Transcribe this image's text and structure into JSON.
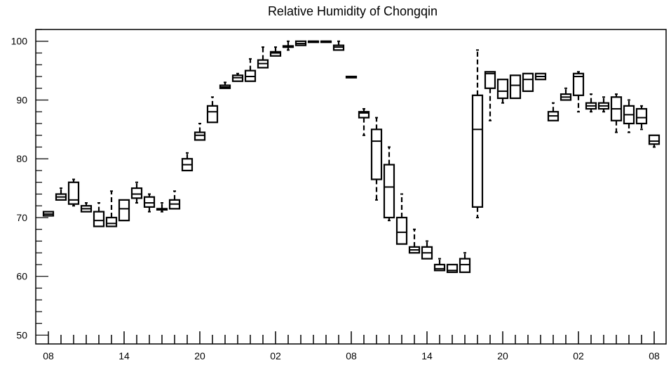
{
  "chart_data": {
    "type": "box",
    "title": "Relative Humidity of Chongqin",
    "xlabel": "",
    "ylabel": "",
    "ylim": [
      48.5,
      102
    ],
    "y_major_ticks": [
      50,
      60,
      70,
      80,
      90,
      100
    ],
    "y_minor_step": 2,
    "x_tick_labels": [
      "08",
      "14",
      "20",
      "02",
      "08",
      "14",
      "20",
      "02",
      "08"
    ],
    "x_hours_range": [
      0,
      48
    ],
    "grid": false,
    "boxes": [
      {
        "hour": 0,
        "whisker_low": 70.3,
        "q1": 70.3,
        "median": 70.6,
        "q3": 71.0,
        "whisker_high": 71.0
      },
      {
        "hour": 1,
        "whisker_low": 73.0,
        "q1": 73.0,
        "median": 73.5,
        "q3": 74.0,
        "whisker_high": 75.0
      },
      {
        "hour": 2,
        "whisker_low": 72.0,
        "q1": 72.3,
        "median": 73.0,
        "q3": 76.0,
        "whisker_high": 76.5
      },
      {
        "hour": 3,
        "whisker_low": 71.0,
        "q1": 71.0,
        "median": 71.5,
        "q3": 72.0,
        "whisker_high": 72.5
      },
      {
        "hour": 4,
        "whisker_low": 68.5,
        "q1": 68.5,
        "median": 69.5,
        "q3": 71.0,
        "whisker_high": 72.5
      },
      {
        "hour": 5,
        "whisker_low": 68.5,
        "q1": 68.5,
        "median": 69.0,
        "q3": 70.0,
        "whisker_high": 74.5
      },
      {
        "hour": 6,
        "whisker_low": 69.5,
        "q1": 69.5,
        "median": 71.5,
        "q3": 73.0,
        "whisker_high": 73.0
      },
      {
        "hour": 7,
        "whisker_low": 72.5,
        "q1": 73.3,
        "median": 74.0,
        "q3": 75.0,
        "whisker_high": 76.0
      },
      {
        "hour": 8,
        "whisker_low": 71.0,
        "q1": 71.8,
        "median": 72.5,
        "q3": 73.5,
        "whisker_high": 74.0
      },
      {
        "hour": 9,
        "whisker_low": 71.0,
        "q1": 71.5,
        "median": 71.5,
        "q3": 71.5,
        "whisker_high": 72.5
      },
      {
        "hour": 10,
        "whisker_low": 71.5,
        "q1": 71.5,
        "median": 72.3,
        "q3": 73.0,
        "whisker_high": 74.5
      },
      {
        "hour": 11,
        "whisker_low": 78.0,
        "q1": 78.0,
        "median": 79.0,
        "q3": 80.0,
        "whisker_high": 81.0
      },
      {
        "hour": 12,
        "whisker_low": 83.2,
        "q1": 83.2,
        "median": 84.0,
        "q3": 84.5,
        "whisker_high": 86.0
      },
      {
        "hour": 13,
        "whisker_low": 86.2,
        "q1": 86.2,
        "median": 88.0,
        "q3": 89.0,
        "whisker_high": 90.5
      },
      {
        "hour": 14,
        "whisker_low": 92.0,
        "q1": 92.0,
        "median": 92.2,
        "q3": 92.5,
        "whisker_high": 93.0
      },
      {
        "hour": 15,
        "whisker_low": 93.2,
        "q1": 93.2,
        "median": 93.8,
        "q3": 94.2,
        "whisker_high": 94.5
      },
      {
        "hour": 16,
        "whisker_low": 93.2,
        "q1": 93.2,
        "median": 94.0,
        "q3": 95.0,
        "whisker_high": 97.0
      },
      {
        "hour": 17,
        "whisker_low": 95.5,
        "q1": 95.5,
        "median": 96.2,
        "q3": 96.8,
        "whisker_high": 99.0
      },
      {
        "hour": 18,
        "whisker_low": 97.5,
        "q1": 97.5,
        "median": 98.0,
        "q3": 98.2,
        "whisker_high": 99.0
      },
      {
        "hour": 19,
        "whisker_low": 98.5,
        "q1": 99.0,
        "median": 99.0,
        "q3": 99.2,
        "whisker_high": 100.0
      },
      {
        "hour": 20,
        "whisker_low": 99.3,
        "q1": 99.3,
        "median": 99.6,
        "q3": 100.0,
        "whisker_high": 100.0
      },
      {
        "hour": 21,
        "whisker_low": 100.0,
        "q1": 100.0,
        "median": 100.0,
        "q3": 100.0,
        "whisker_high": 100.0
      },
      {
        "hour": 22,
        "whisker_low": 100.0,
        "q1": 100.0,
        "median": 100.0,
        "q3": 100.0,
        "whisker_high": 100.0
      },
      {
        "hour": 23,
        "whisker_low": 98.5,
        "q1": 98.5,
        "median": 99.0,
        "q3": 99.3,
        "whisker_high": 100.0
      },
      {
        "hour": 24,
        "whisker_low": 93.8,
        "q1": 93.8,
        "median": 94.0,
        "q3": 94.0,
        "whisker_high": 94.0
      },
      {
        "hour": 25,
        "whisker_low": 84.0,
        "q1": 87.0,
        "median": 87.8,
        "q3": 88.0,
        "whisker_high": 88.5
      },
      {
        "hour": 26,
        "whisker_low": 73.0,
        "q1": 76.5,
        "median": 83.0,
        "q3": 85.0,
        "whisker_high": 87.0
      },
      {
        "hour": 27,
        "whisker_low": 69.5,
        "q1": 70.0,
        "median": 75.2,
        "q3": 79.0,
        "whisker_high": 82.0
      },
      {
        "hour": 28,
        "whisker_low": 65.5,
        "q1": 65.5,
        "median": 67.5,
        "q3": 70.0,
        "whisker_high": 74.0
      },
      {
        "hour": 29,
        "whisker_low": 64.0,
        "q1": 64.0,
        "median": 64.5,
        "q3": 65.0,
        "whisker_high": 68.0
      },
      {
        "hour": 30,
        "whisker_low": 63.0,
        "q1": 63.0,
        "median": 64.0,
        "q3": 65.0,
        "whisker_high": 66.0
      },
      {
        "hour": 31,
        "whisker_low": 61.0,
        "q1": 61.0,
        "median": 61.3,
        "q3": 62.0,
        "whisker_high": 63.0
      },
      {
        "hour": 32,
        "whisker_low": 60.7,
        "q1": 60.7,
        "median": 61.0,
        "q3": 62.0,
        "whisker_high": 62.0
      },
      {
        "hour": 33,
        "whisker_low": 60.7,
        "q1": 60.7,
        "median": 62.0,
        "q3": 63.0,
        "whisker_high": 64.0
      },
      {
        "hour": 34,
        "whisker_low": 70.0,
        "q1": 71.8,
        "median": 85.0,
        "q3": 90.8,
        "whisker_high": 98.5
      },
      {
        "hour": 35,
        "whisker_low": 86.5,
        "q1": 92.0,
        "median": 94.5,
        "q3": 94.8,
        "whisker_high": 94.8
      },
      {
        "hour": 36,
        "whisker_low": 89.5,
        "q1": 90.3,
        "median": 91.5,
        "q3": 93.5,
        "whisker_high": 93.5
      },
      {
        "hour": 37,
        "whisker_low": 90.3,
        "q1": 90.3,
        "median": 92.5,
        "q3": 94.2,
        "whisker_high": 94.2
      },
      {
        "hour": 38,
        "whisker_low": 91.5,
        "q1": 91.5,
        "median": 93.5,
        "q3": 94.5,
        "whisker_high": 94.5
      },
      {
        "hour": 39,
        "whisker_low": 93.5,
        "q1": 93.5,
        "median": 94.0,
        "q3": 94.5,
        "whisker_high": 94.5
      },
      {
        "hour": 40,
        "whisker_low": 86.5,
        "q1": 86.5,
        "median": 87.3,
        "q3": 88.0,
        "whisker_high": 89.5
      },
      {
        "hour": 41,
        "whisker_low": 90.0,
        "q1": 90.0,
        "median": 90.5,
        "q3": 91.0,
        "whisker_high": 92.0
      },
      {
        "hour": 42,
        "whisker_low": 88.0,
        "q1": 90.8,
        "median": 94.0,
        "q3": 94.5,
        "whisker_high": 94.8
      },
      {
        "hour": 43,
        "whisker_low": 88.0,
        "q1": 88.5,
        "median": 89.0,
        "q3": 89.5,
        "whisker_high": 91.0
      },
      {
        "hour": 44,
        "whisker_low": 88.0,
        "q1": 88.5,
        "median": 89.0,
        "q3": 89.5,
        "whisker_high": 90.5
      },
      {
        "hour": 45,
        "whisker_low": 84.5,
        "q1": 86.5,
        "median": 88.5,
        "q3": 90.5,
        "whisker_high": 91.0
      },
      {
        "hour": 46,
        "whisker_low": 84.5,
        "q1": 86.0,
        "median": 87.5,
        "q3": 89.0,
        "whisker_high": 90.0
      },
      {
        "hour": 47,
        "whisker_low": 85.0,
        "q1": 86.0,
        "median": 87.0,
        "q3": 88.5,
        "whisker_high": 89.0
      },
      {
        "hour": 48,
        "whisker_low": 82.0,
        "q1": 82.5,
        "median": 83.0,
        "q3": 84.0,
        "whisker_high": 84.0
      }
    ]
  }
}
